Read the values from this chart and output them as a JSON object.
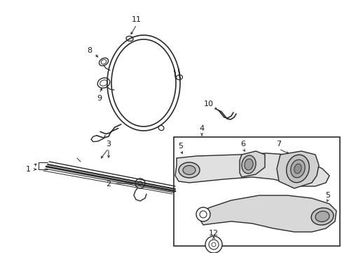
{
  "bg_color": "#ffffff",
  "line_color": "#2a2a2a",
  "label_color": "#1a1a1a",
  "figsize": [
    4.89,
    3.6
  ],
  "dpi": 100
}
